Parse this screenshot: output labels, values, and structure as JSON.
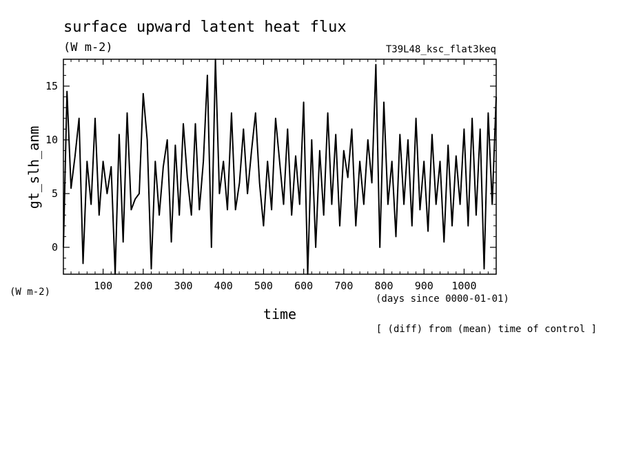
{
  "chart_data": {
    "type": "line",
    "title": "surface upward latent heat flux",
    "units": "(W m-2)",
    "run_label": "T39L48_ksc_flat3keq",
    "ylabel": "gt_slh_anm",
    "xlabel": "time",
    "xunits": "(days since 0000-01-01)",
    "left_units": "(W m-2)",
    "footnote": "[ (diff) from (mean) time of control ]",
    "xlim": [
      1,
      1080
    ],
    "ylim": [
      -2.5,
      17.5
    ],
    "x_ticks": [
      100,
      200,
      300,
      400,
      500,
      600,
      700,
      800,
      900,
      1000
    ],
    "y_ticks": [
      0,
      5,
      10,
      15
    ],
    "grid": false,
    "series": [
      {
        "x": [
          1,
          10,
          20,
          30,
          40,
          50,
          60,
          70,
          80,
          90,
          100,
          110,
          120,
          130,
          140,
          150,
          160,
          170,
          180,
          190,
          200,
          210,
          220,
          230,
          240,
          250,
          260,
          270,
          280,
          290,
          300,
          310,
          320,
          330,
          340,
          350,
          360,
          370,
          380,
          390,
          400,
          410,
          420,
          430,
          440,
          450,
          460,
          470,
          480,
          490,
          500,
          510,
          520,
          530,
          540,
          550,
          560,
          570,
          580,
          590,
          600,
          610,
          620,
          630,
          640,
          650,
          660,
          670,
          680,
          690,
          700,
          710,
          720,
          730,
          740,
          750,
          760,
          770,
          780,
          790,
          800,
          810,
          820,
          830,
          840,
          850,
          860,
          870,
          880,
          890,
          900,
          910,
          920,
          930,
          940,
          950,
          960,
          970,
          980,
          990,
          1000,
          1010,
          1020,
          1030,
          1040,
          1050,
          1060,
          1070,
          1080
        ],
        "values": [
          0,
          14.5,
          5.5,
          8.5,
          12,
          -1.5,
          8,
          4,
          12,
          3,
          8,
          5,
          7.5,
          -2.5,
          10.5,
          0.5,
          12.5,
          3.5,
          4.5,
          5,
          14.3,
          10,
          -2,
          8,
          3,
          7.5,
          10,
          0.5,
          9.5,
          3,
          11.5,
          6.5,
          3,
          11.5,
          3.5,
          8,
          16,
          0,
          17.5,
          5,
          8,
          3.5,
          12.5,
          3.5,
          6,
          11,
          5,
          9,
          12.5,
          6,
          2,
          8,
          3.5,
          12,
          8,
          4,
          11,
          3,
          8.5,
          4,
          13.5,
          -2.5,
          10,
          0,
          9,
          3,
          12.5,
          4,
          10.5,
          2,
          9,
          6.5,
          11,
          2,
          8,
          4,
          10,
          6,
          17,
          0,
          13.5,
          4,
          8,
          1,
          10.5,
          4,
          10,
          2,
          12,
          3.5,
          8,
          1.5,
          10.5,
          4,
          8,
          0.5,
          9.5,
          2,
          8.5,
          4,
          11,
          2,
          12,
          3,
          11,
          -2,
          12.5,
          4,
          14
        ]
      }
    ]
  }
}
